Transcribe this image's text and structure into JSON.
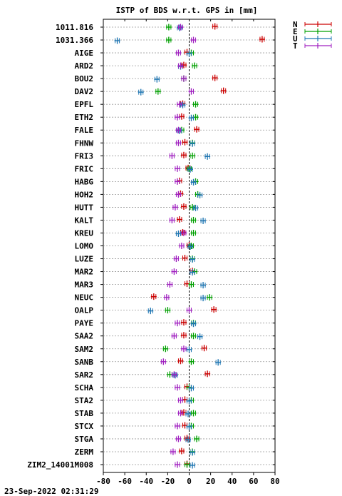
{
  "chart_data": {
    "type": "scatter",
    "title": "ISTP of BDS w.r.t. GPS in [mm]",
    "timestamp": "23-Sep-2022 02:31:29",
    "xlim": [
      -80,
      80
    ],
    "x_ticks": [
      -80,
      -60,
      -40,
      -20,
      0,
      20,
      40,
      60,
      80
    ],
    "grid": "horizontal dotted per station, dashed vertical zero line",
    "legend_position": "top-right",
    "colors": {
      "N": "#cc0000",
      "E": "#00a000",
      "U": "#1f77b4",
      "T": "#a020c0"
    },
    "series": [
      {
        "name": "N",
        "color": "#cc0000"
      },
      {
        "name": "E",
        "color": "#00a000"
      },
      {
        "name": "U",
        "color": "#1f77b4"
      },
      {
        "name": "T",
        "color": "#a020c0"
      }
    ],
    "stations": [
      {
        "name": "1011.816",
        "N": 24,
        "E": -19,
        "U": -9,
        "T": -8
      },
      {
        "name": "1031.366",
        "N": 68,
        "E": -19,
        "U": -67,
        "T": 4
      },
      {
        "name": "AIGE",
        "N": -2,
        "E": 2,
        "U": 0,
        "T": -10
      },
      {
        "name": "ARD2",
        "N": -5,
        "E": 5,
        "U": -8,
        "T": -8
      },
      {
        "name": "BOU2",
        "N": 24,
        "E": -5,
        "U": -30,
        "T": -5
      },
      {
        "name": "DAV2",
        "N": 32,
        "E": -29,
        "U": -45,
        "T": 2
      },
      {
        "name": "EPFL",
        "N": -6,
        "E": 6,
        "U": -6,
        "T": -9
      },
      {
        "name": "ETH2",
        "N": -7,
        "E": 6,
        "U": 2,
        "T": -11
      },
      {
        "name": "FALE",
        "N": 7,
        "E": -7,
        "U": -9,
        "T": -10
      },
      {
        "name": "FHNW",
        "N": -4,
        "E": 3,
        "U": 3,
        "T": -10
      },
      {
        "name": "FRI3",
        "N": -5,
        "E": 3,
        "U": 17,
        "T": -16
      },
      {
        "name": "FRIC",
        "N": -1,
        "E": 0,
        "U": 1,
        "T": -11
      },
      {
        "name": "HABG",
        "N": -9,
        "E": 6,
        "U": 4,
        "T": -11
      },
      {
        "name": "HOH2",
        "N": -8,
        "E": 8,
        "U": 10,
        "T": -10
      },
      {
        "name": "HUTT",
        "N": -5,
        "E": 3,
        "U": 6,
        "T": -13
      },
      {
        "name": "KALT",
        "N": -9,
        "E": 4,
        "U": 13,
        "T": -16
      },
      {
        "name": "KREU",
        "N": -6,
        "E": 4,
        "U": -10,
        "T": -5
      },
      {
        "name": "LOMO",
        "N": 0,
        "E": 2,
        "U": 1,
        "T": -7
      },
      {
        "name": "LUZE",
        "N": -4,
        "E": 3,
        "U": 3,
        "T": -12
      },
      {
        "name": "MAR2",
        "N": 3,
        "E": 5,
        "U": 3,
        "T": -14
      },
      {
        "name": "MAR3",
        "N": -2,
        "E": 2,
        "U": 13,
        "T": -18
      },
      {
        "name": "NEUC",
        "N": -33,
        "E": 19,
        "U": 13,
        "T": -21
      },
      {
        "name": "OALP",
        "N": 23,
        "E": -20,
        "U": -36,
        "T": 0
      },
      {
        "name": "PAYE",
        "N": -5,
        "E": 4,
        "U": 4,
        "T": -11
      },
      {
        "name": "SAA2",
        "N": -5,
        "E": 4,
        "U": 10,
        "T": -14
      },
      {
        "name": "SAM2",
        "N": 14,
        "E": -22,
        "U": 0,
        "T": -5
      },
      {
        "name": "SANB",
        "N": -8,
        "E": 2,
        "U": 27,
        "T": -24
      },
      {
        "name": "SAR2",
        "N": 17,
        "E": -18,
        "U": -13,
        "T": -14
      },
      {
        "name": "SCHA",
        "N": -2,
        "E": 0,
        "U": 2,
        "T": -11
      },
      {
        "name": "STA2",
        "N": -4,
        "E": 2,
        "U": 0,
        "T": -8
      },
      {
        "name": "STAB",
        "N": -5,
        "E": 4,
        "U": -1,
        "T": -8
      },
      {
        "name": "STCX",
        "N": -4,
        "E": 2,
        "U": 0,
        "T": -11
      },
      {
        "name": "STGA",
        "N": -2,
        "E": 7,
        "U": -1,
        "T": -10
      },
      {
        "name": "ZERM",
        "N": -7,
        "E": 3,
        "U": 3,
        "T": -15
      },
      {
        "name": "ZIM2_14001M008",
        "N": -2,
        "E": -2,
        "U": 3,
        "T": -11
      }
    ]
  }
}
